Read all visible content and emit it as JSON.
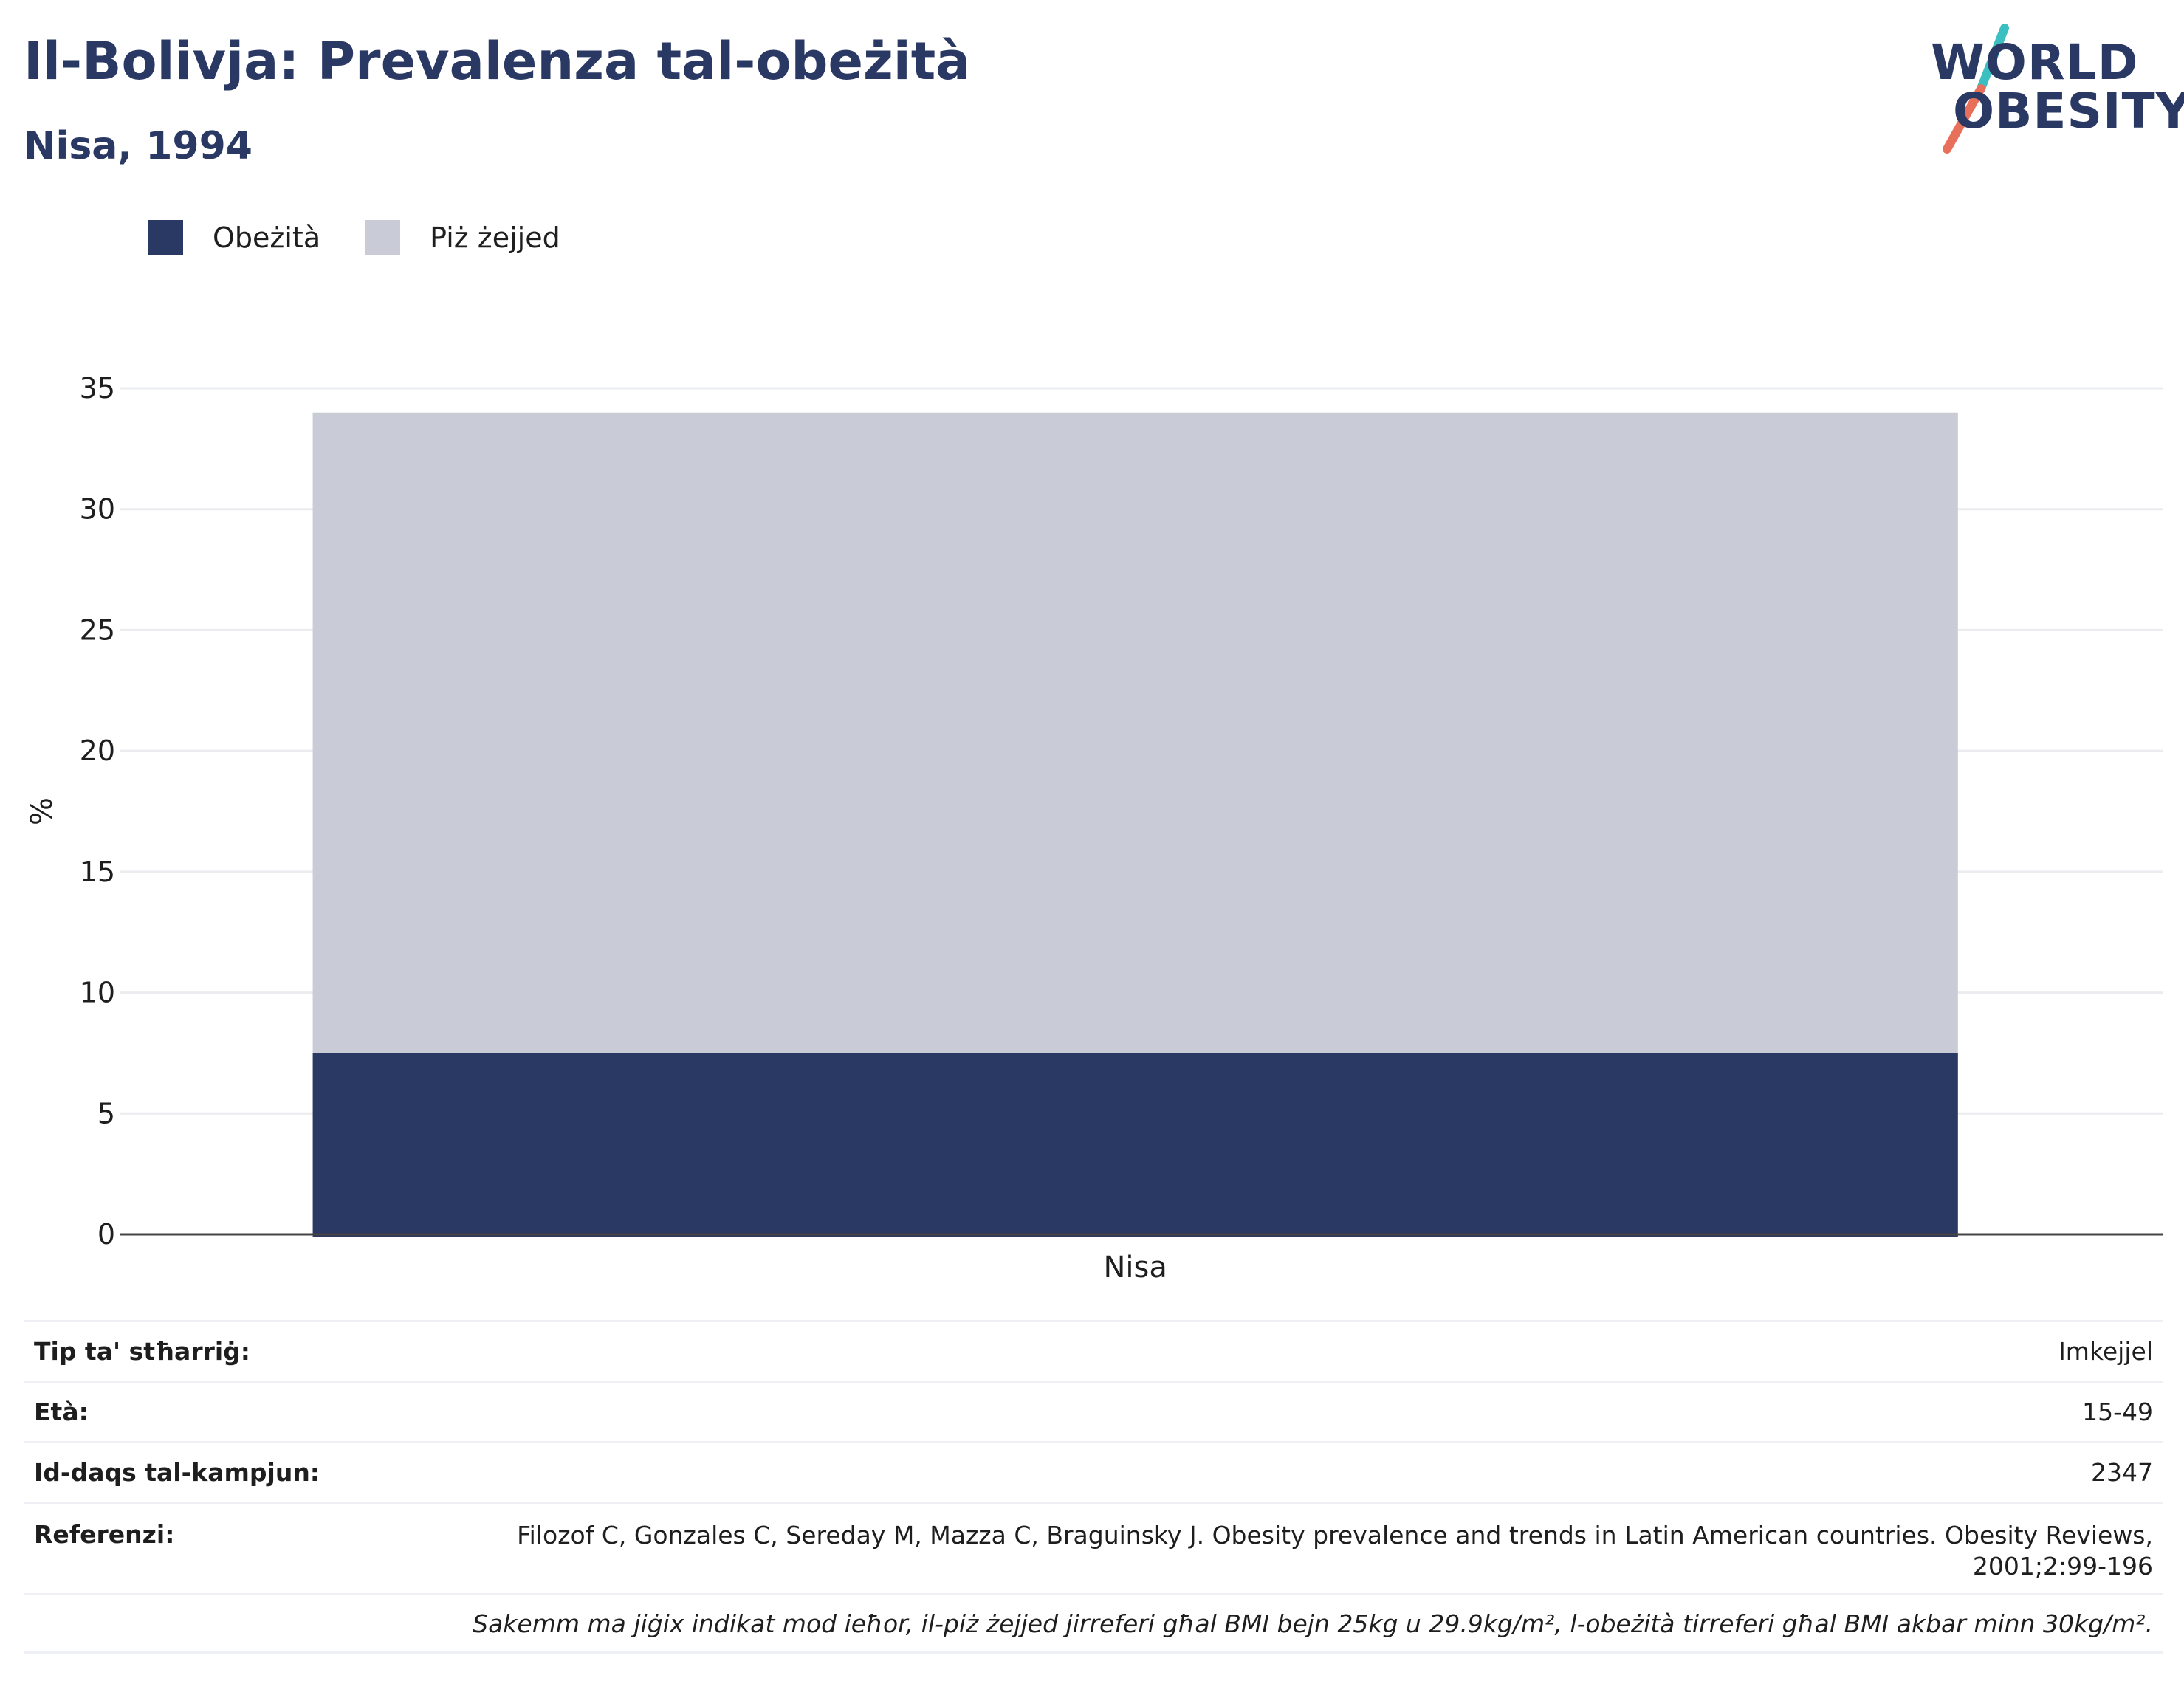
{
  "header": {
    "title": "Il-Bolivja: Prevalenza tal-obeżità",
    "subtitle": "Nisa, 1994"
  },
  "logo": {
    "line1": "WORLD",
    "line2": "OBESITY",
    "colors": {
      "text": "#2a3864",
      "slash_top": "#3cbfc1",
      "slash_bottom": "#e8705a"
    }
  },
  "legend": [
    {
      "label": "Obeżità",
      "color": "#2a3864"
    },
    {
      "label": "Piż żejjed",
      "color": "#c9ccd7"
    }
  ],
  "chart_data": {
    "type": "bar",
    "stacked": true,
    "categories": [
      "Nisa"
    ],
    "series": [
      {
        "name": "Obeżità",
        "values": [
          7.5
        ],
        "color": "#2a3864"
      },
      {
        "name": "Piż żejjed",
        "values": [
          26.5
        ],
        "color": "#c9ccd7"
      }
    ],
    "ylabel": "%",
    "xlabel": "",
    "ylim": [
      0,
      35
    ],
    "yticks": [
      0,
      5,
      10,
      15,
      20,
      25,
      30,
      35
    ],
    "grid": true,
    "legend_position": "top-left"
  },
  "info_table": {
    "rows": [
      {
        "key": "Tip ta' stħarriġ:",
        "value": "Imkejjel"
      },
      {
        "key": "Età:",
        "value": "15-49"
      },
      {
        "key": "Id-daqs tal-kampjun:",
        "value": "2347"
      },
      {
        "key": "Referenzi:",
        "value": "Filozof C, Gonzales C, Sereday M, Mazza C, Braguinsky J. Obesity prevalence and trends in Latin American countries. Obesity Reviews, 2001;2:99-196"
      }
    ],
    "footnote": "Sakemm ma jiġix indikat mod ieħor, il-piż żejjed jirreferi għal BMI bejn 25kg u 29.9kg/m², l-obeżità tirreferi għal BMI akbar minn 30kg/m²."
  }
}
